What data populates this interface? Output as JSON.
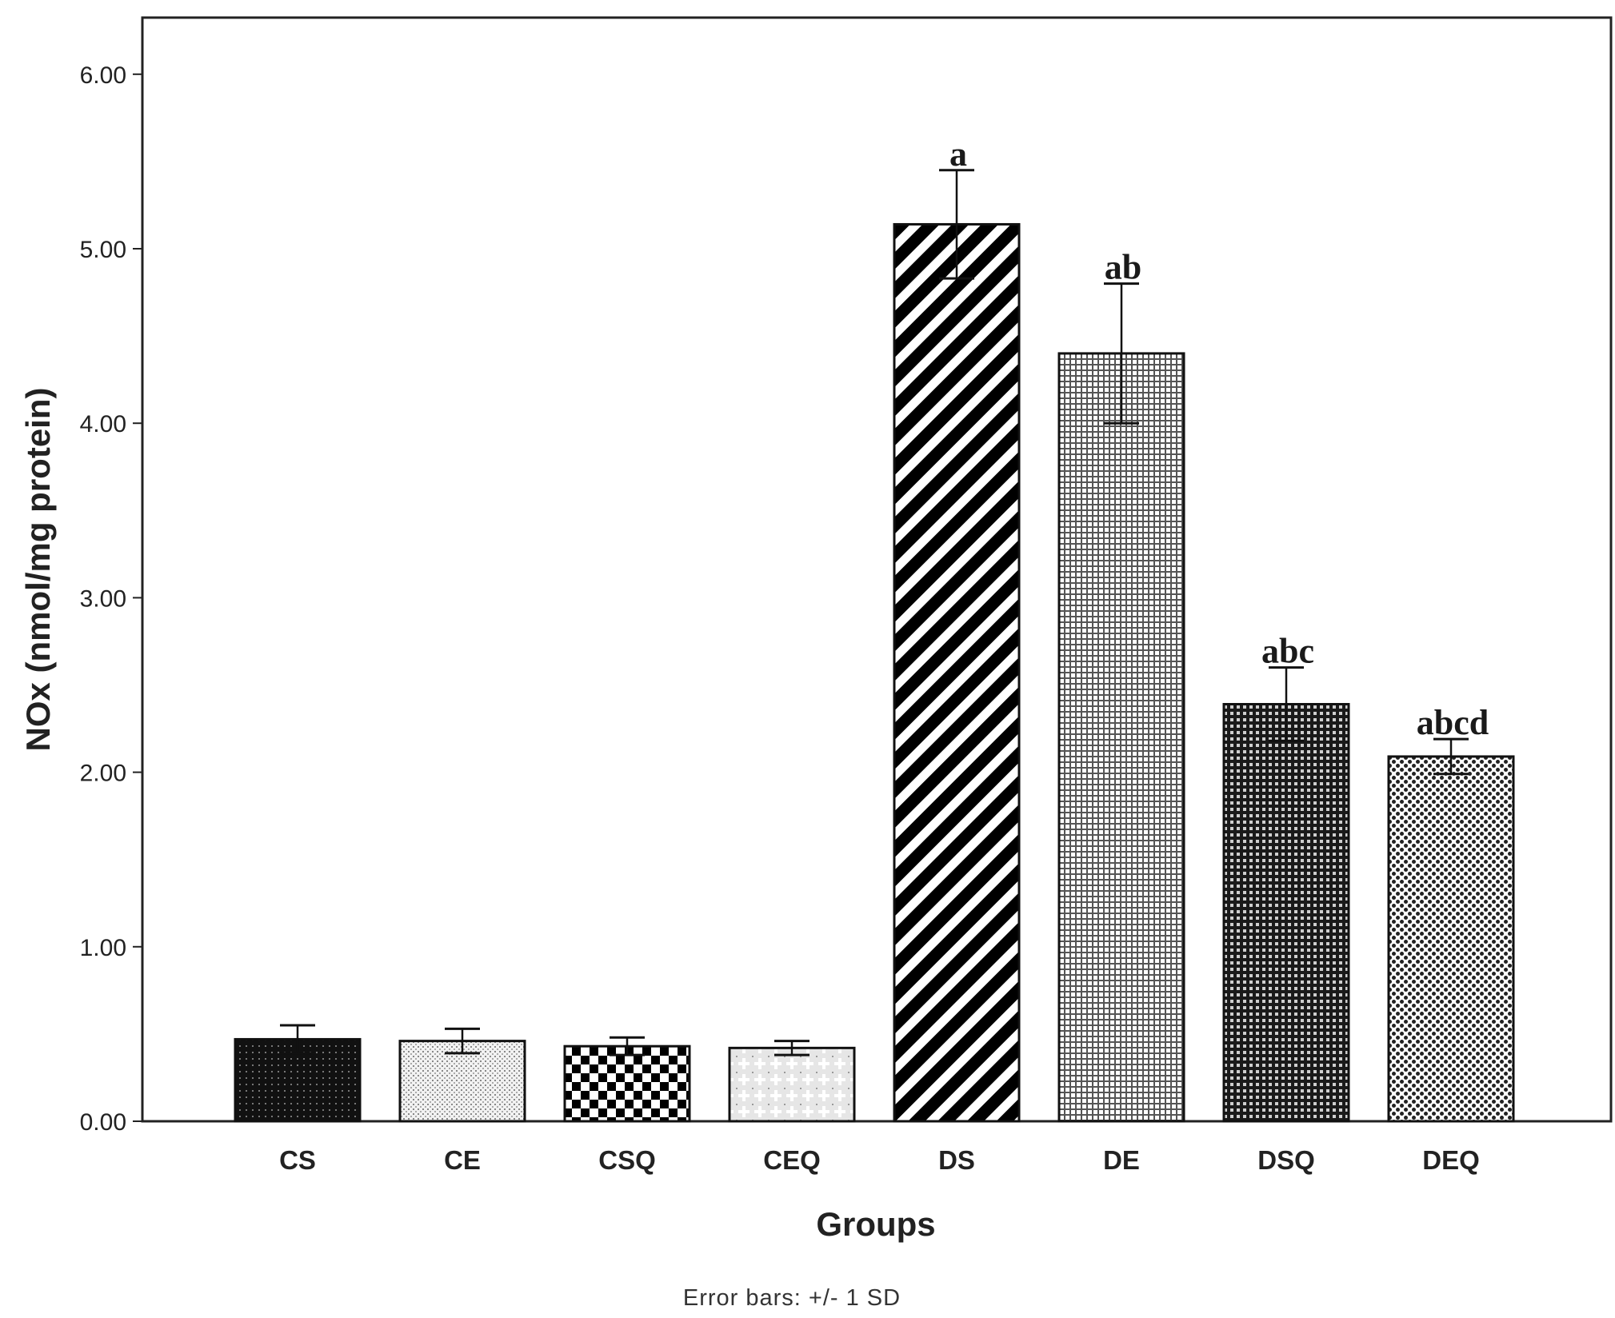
{
  "chart_data": {
    "type": "bar",
    "categories": [
      "CS",
      "CE",
      "CSQ",
      "CEQ",
      "DS",
      "DE",
      "DSQ",
      "DEQ"
    ],
    "values": [
      0.47,
      0.46,
      0.43,
      0.42,
      5.14,
      4.4,
      2.39,
      2.09
    ],
    "error_sd": [
      0.08,
      0.07,
      0.05,
      0.04,
      0.31,
      0.4,
      0.21,
      0.1
    ],
    "significance_labels": [
      "",
      "",
      "",
      "",
      "a",
      "ab",
      "abc",
      "abcd"
    ],
    "xlabel": "Groups",
    "ylabel": "NOx (nmol/mg protein)",
    "ylim": [
      0,
      6.3
    ],
    "yticks": [
      "0.00",
      "1.00",
      "2.00",
      "3.00",
      "4.00",
      "5.00",
      "6.00"
    ],
    "grid": false,
    "legend": "none",
    "footnote": "Error bars: +/- 1 SD",
    "patterns": [
      "dense-dark-dots",
      "light-stipple",
      "checkerboard",
      "light-plus",
      "diagonal-stripes",
      "fine-grid",
      "dark-grid",
      "dot-lattice"
    ]
  }
}
